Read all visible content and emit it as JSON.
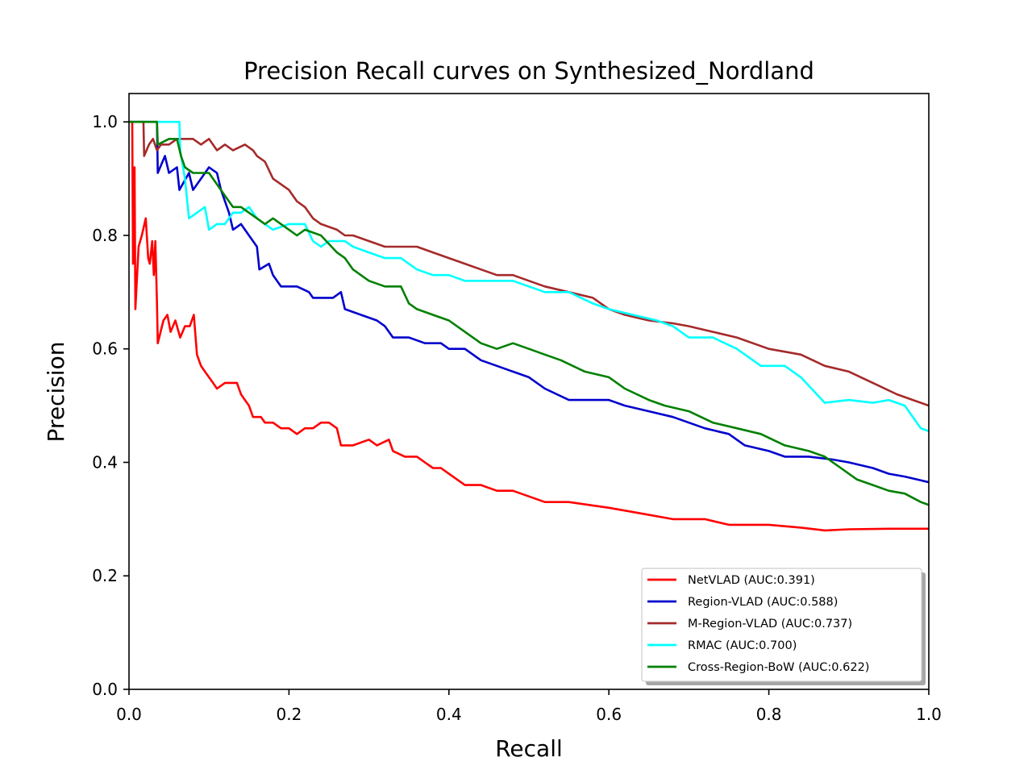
{
  "chart_data": {
    "type": "line",
    "title": "Precision Recall curves on Synthesized_Nordland",
    "xlabel": "Recall",
    "ylabel": "Precision",
    "xlim": [
      0,
      1
    ],
    "ylim": [
      0,
      1.05
    ],
    "xticks": [
      0.0,
      0.2,
      0.4,
      0.6,
      0.8,
      1.0
    ],
    "yticks": [
      0.0,
      0.2,
      0.4,
      0.6,
      0.8,
      1.0
    ],
    "xtick_labels": [
      "0.0",
      "0.2",
      "0.4",
      "0.6",
      "0.8",
      "1.0"
    ],
    "ytick_labels": [
      "0.0",
      "0.2",
      "0.4",
      "0.6",
      "0.8",
      "1.0"
    ],
    "grid": false,
    "legend_position": "lower-right",
    "series": [
      {
        "name": "NetVLAD (AUC:0.391)",
        "color": "#ff0000",
        "points": [
          [
            0.0,
            1.0
          ],
          [
            0.004,
            1.0
          ],
          [
            0.005,
            0.75
          ],
          [
            0.007,
            0.92
          ],
          [
            0.008,
            0.67
          ],
          [
            0.012,
            0.78
          ],
          [
            0.016,
            0.8
          ],
          [
            0.021,
            0.83
          ],
          [
            0.024,
            0.76
          ],
          [
            0.026,
            0.75
          ],
          [
            0.029,
            0.79
          ],
          [
            0.031,
            0.73
          ],
          [
            0.033,
            0.79
          ],
          [
            0.035,
            0.68
          ],
          [
            0.036,
            0.61
          ],
          [
            0.043,
            0.65
          ],
          [
            0.048,
            0.66
          ],
          [
            0.052,
            0.63
          ],
          [
            0.058,
            0.65
          ],
          [
            0.064,
            0.62
          ],
          [
            0.07,
            0.64
          ],
          [
            0.076,
            0.64
          ],
          [
            0.081,
            0.66
          ],
          [
            0.085,
            0.59
          ],
          [
            0.09,
            0.57
          ],
          [
            0.095,
            0.56
          ],
          [
            0.1,
            0.55
          ],
          [
            0.105,
            0.54
          ],
          [
            0.11,
            0.53
          ],
          [
            0.12,
            0.54
          ],
          [
            0.13,
            0.54
          ],
          [
            0.135,
            0.54
          ],
          [
            0.14,
            0.52
          ],
          [
            0.145,
            0.51
          ],
          [
            0.15,
            0.5
          ],
          [
            0.155,
            0.48
          ],
          [
            0.165,
            0.48
          ],
          [
            0.17,
            0.47
          ],
          [
            0.18,
            0.47
          ],
          [
            0.19,
            0.46
          ],
          [
            0.2,
            0.46
          ],
          [
            0.21,
            0.45
          ],
          [
            0.22,
            0.46
          ],
          [
            0.23,
            0.46
          ],
          [
            0.24,
            0.47
          ],
          [
            0.25,
            0.47
          ],
          [
            0.26,
            0.46
          ],
          [
            0.265,
            0.43
          ],
          [
            0.28,
            0.43
          ],
          [
            0.3,
            0.44
          ],
          [
            0.31,
            0.43
          ],
          [
            0.325,
            0.44
          ],
          [
            0.33,
            0.42
          ],
          [
            0.345,
            0.41
          ],
          [
            0.36,
            0.41
          ],
          [
            0.37,
            0.4
          ],
          [
            0.38,
            0.39
          ],
          [
            0.39,
            0.39
          ],
          [
            0.4,
            0.38
          ],
          [
            0.41,
            0.37
          ],
          [
            0.42,
            0.36
          ],
          [
            0.44,
            0.36
          ],
          [
            0.46,
            0.35
          ],
          [
            0.48,
            0.35
          ],
          [
            0.5,
            0.34
          ],
          [
            0.52,
            0.33
          ],
          [
            0.55,
            0.33
          ],
          [
            0.6,
            0.32
          ],
          [
            0.64,
            0.31
          ],
          [
            0.68,
            0.3
          ],
          [
            0.72,
            0.3
          ],
          [
            0.75,
            0.29
          ],
          [
            0.8,
            0.29
          ],
          [
            0.84,
            0.285
          ],
          [
            0.87,
            0.28
          ],
          [
            0.9,
            0.282
          ],
          [
            0.95,
            0.283
          ],
          [
            1.0,
            0.283
          ]
        ]
      },
      {
        "name": "Region-VLAD (AUC:0.588)",
        "color": "#0000cc",
        "points": [
          [
            0.0,
            1.0
          ],
          [
            0.035,
            1.0
          ],
          [
            0.036,
            0.91
          ],
          [
            0.045,
            0.94
          ],
          [
            0.05,
            0.91
          ],
          [
            0.06,
            0.92
          ],
          [
            0.063,
            0.88
          ],
          [
            0.075,
            0.91
          ],
          [
            0.08,
            0.88
          ],
          [
            0.09,
            0.9
          ],
          [
            0.1,
            0.92
          ],
          [
            0.11,
            0.91
          ],
          [
            0.115,
            0.88
          ],
          [
            0.125,
            0.84
          ],
          [
            0.13,
            0.81
          ],
          [
            0.14,
            0.82
          ],
          [
            0.15,
            0.8
          ],
          [
            0.155,
            0.79
          ],
          [
            0.16,
            0.78
          ],
          [
            0.163,
            0.74
          ],
          [
            0.175,
            0.75
          ],
          [
            0.18,
            0.73
          ],
          [
            0.19,
            0.71
          ],
          [
            0.21,
            0.71
          ],
          [
            0.225,
            0.7
          ],
          [
            0.23,
            0.69
          ],
          [
            0.24,
            0.69
          ],
          [
            0.255,
            0.69
          ],
          [
            0.265,
            0.7
          ],
          [
            0.27,
            0.67
          ],
          [
            0.29,
            0.66
          ],
          [
            0.31,
            0.65
          ],
          [
            0.32,
            0.64
          ],
          [
            0.33,
            0.62
          ],
          [
            0.35,
            0.62
          ],
          [
            0.37,
            0.61
          ],
          [
            0.39,
            0.61
          ],
          [
            0.4,
            0.6
          ],
          [
            0.42,
            0.6
          ],
          [
            0.44,
            0.58
          ],
          [
            0.46,
            0.57
          ],
          [
            0.48,
            0.56
          ],
          [
            0.5,
            0.55
          ],
          [
            0.52,
            0.53
          ],
          [
            0.55,
            0.51
          ],
          [
            0.58,
            0.51
          ],
          [
            0.6,
            0.51
          ],
          [
            0.62,
            0.5
          ],
          [
            0.65,
            0.49
          ],
          [
            0.68,
            0.48
          ],
          [
            0.72,
            0.46
          ],
          [
            0.75,
            0.45
          ],
          [
            0.77,
            0.43
          ],
          [
            0.8,
            0.42
          ],
          [
            0.82,
            0.41
          ],
          [
            0.85,
            0.41
          ],
          [
            0.88,
            0.405
          ],
          [
            0.9,
            0.4
          ],
          [
            0.93,
            0.39
          ],
          [
            0.95,
            0.38
          ],
          [
            0.97,
            0.375
          ],
          [
            1.0,
            0.365
          ]
        ]
      },
      {
        "name": "M-Region-VLAD (AUC:0.737)",
        "color": "#a52a2a",
        "points": [
          [
            0.0,
            1.0
          ],
          [
            0.018,
            1.0
          ],
          [
            0.019,
            0.94
          ],
          [
            0.025,
            0.96
          ],
          [
            0.03,
            0.97
          ],
          [
            0.035,
            0.95
          ],
          [
            0.04,
            0.96
          ],
          [
            0.05,
            0.96
          ],
          [
            0.06,
            0.97
          ],
          [
            0.07,
            0.97
          ],
          [
            0.08,
            0.97
          ],
          [
            0.09,
            0.96
          ],
          [
            0.1,
            0.97
          ],
          [
            0.11,
            0.95
          ],
          [
            0.12,
            0.96
          ],
          [
            0.13,
            0.95
          ],
          [
            0.145,
            0.96
          ],
          [
            0.155,
            0.95
          ],
          [
            0.16,
            0.94
          ],
          [
            0.17,
            0.93
          ],
          [
            0.18,
            0.9
          ],
          [
            0.19,
            0.89
          ],
          [
            0.2,
            0.88
          ],
          [
            0.21,
            0.86
          ],
          [
            0.22,
            0.85
          ],
          [
            0.23,
            0.83
          ],
          [
            0.24,
            0.82
          ],
          [
            0.26,
            0.81
          ],
          [
            0.27,
            0.8
          ],
          [
            0.28,
            0.8
          ],
          [
            0.3,
            0.79
          ],
          [
            0.32,
            0.78
          ],
          [
            0.34,
            0.78
          ],
          [
            0.36,
            0.78
          ],
          [
            0.38,
            0.77
          ],
          [
            0.4,
            0.76
          ],
          [
            0.42,
            0.75
          ],
          [
            0.44,
            0.74
          ],
          [
            0.46,
            0.73
          ],
          [
            0.48,
            0.73
          ],
          [
            0.5,
            0.72
          ],
          [
            0.52,
            0.71
          ],
          [
            0.55,
            0.7
          ],
          [
            0.58,
            0.69
          ],
          [
            0.6,
            0.67
          ],
          [
            0.62,
            0.66
          ],
          [
            0.65,
            0.65
          ],
          [
            0.68,
            0.645
          ],
          [
            0.7,
            0.64
          ],
          [
            0.73,
            0.63
          ],
          [
            0.76,
            0.62
          ],
          [
            0.8,
            0.6
          ],
          [
            0.84,
            0.59
          ],
          [
            0.87,
            0.57
          ],
          [
            0.9,
            0.56
          ],
          [
            0.93,
            0.54
          ],
          [
            0.96,
            0.52
          ],
          [
            0.98,
            0.51
          ],
          [
            1.0,
            0.5
          ]
        ]
      },
      {
        "name": "RMAC (AUC:0.700)",
        "color": "#00ffff",
        "points": [
          [
            0.0,
            1.0
          ],
          [
            0.063,
            1.0
          ],
          [
            0.064,
            0.95
          ],
          [
            0.07,
            0.9
          ],
          [
            0.075,
            0.83
          ],
          [
            0.085,
            0.84
          ],
          [
            0.095,
            0.85
          ],
          [
            0.1,
            0.81
          ],
          [
            0.11,
            0.82
          ],
          [
            0.12,
            0.82
          ],
          [
            0.13,
            0.84
          ],
          [
            0.14,
            0.84
          ],
          [
            0.15,
            0.85
          ],
          [
            0.16,
            0.83
          ],
          [
            0.17,
            0.82
          ],
          [
            0.18,
            0.81
          ],
          [
            0.2,
            0.82
          ],
          [
            0.22,
            0.82
          ],
          [
            0.23,
            0.79
          ],
          [
            0.24,
            0.78
          ],
          [
            0.25,
            0.79
          ],
          [
            0.27,
            0.79
          ],
          [
            0.28,
            0.78
          ],
          [
            0.3,
            0.77
          ],
          [
            0.32,
            0.76
          ],
          [
            0.34,
            0.76
          ],
          [
            0.36,
            0.74
          ],
          [
            0.38,
            0.73
          ],
          [
            0.4,
            0.73
          ],
          [
            0.42,
            0.72
          ],
          [
            0.45,
            0.72
          ],
          [
            0.48,
            0.72
          ],
          [
            0.5,
            0.71
          ],
          [
            0.52,
            0.7
          ],
          [
            0.55,
            0.7
          ],
          [
            0.58,
            0.68
          ],
          [
            0.6,
            0.67
          ],
          [
            0.63,
            0.66
          ],
          [
            0.66,
            0.65
          ],
          [
            0.68,
            0.64
          ],
          [
            0.7,
            0.62
          ],
          [
            0.73,
            0.62
          ],
          [
            0.76,
            0.6
          ],
          [
            0.79,
            0.57
          ],
          [
            0.82,
            0.57
          ],
          [
            0.84,
            0.55
          ],
          [
            0.86,
            0.52
          ],
          [
            0.87,
            0.505
          ],
          [
            0.9,
            0.51
          ],
          [
            0.93,
            0.505
          ],
          [
            0.95,
            0.51
          ],
          [
            0.97,
            0.5
          ],
          [
            0.99,
            0.46
          ],
          [
            1.0,
            0.455
          ]
        ]
      },
      {
        "name": "Cross-Region-BoW (AUC:0.622)",
        "color": "#008000",
        "points": [
          [
            0.0,
            1.0
          ],
          [
            0.035,
            1.0
          ],
          [
            0.036,
            0.96
          ],
          [
            0.05,
            0.97
          ],
          [
            0.06,
            0.97
          ],
          [
            0.065,
            0.94
          ],
          [
            0.07,
            0.92
          ],
          [
            0.08,
            0.91
          ],
          [
            0.09,
            0.91
          ],
          [
            0.1,
            0.91
          ],
          [
            0.11,
            0.89
          ],
          [
            0.12,
            0.87
          ],
          [
            0.13,
            0.85
          ],
          [
            0.14,
            0.85
          ],
          [
            0.15,
            0.84
          ],
          [
            0.16,
            0.83
          ],
          [
            0.17,
            0.82
          ],
          [
            0.18,
            0.83
          ],
          [
            0.19,
            0.82
          ],
          [
            0.2,
            0.81
          ],
          [
            0.21,
            0.8
          ],
          [
            0.22,
            0.81
          ],
          [
            0.24,
            0.8
          ],
          [
            0.26,
            0.77
          ],
          [
            0.27,
            0.76
          ],
          [
            0.28,
            0.74
          ],
          [
            0.3,
            0.72
          ],
          [
            0.32,
            0.71
          ],
          [
            0.34,
            0.71
          ],
          [
            0.35,
            0.68
          ],
          [
            0.36,
            0.67
          ],
          [
            0.38,
            0.66
          ],
          [
            0.4,
            0.65
          ],
          [
            0.42,
            0.63
          ],
          [
            0.44,
            0.61
          ],
          [
            0.46,
            0.6
          ],
          [
            0.48,
            0.61
          ],
          [
            0.5,
            0.6
          ],
          [
            0.52,
            0.59
          ],
          [
            0.54,
            0.58
          ],
          [
            0.57,
            0.56
          ],
          [
            0.6,
            0.55
          ],
          [
            0.62,
            0.53
          ],
          [
            0.65,
            0.51
          ],
          [
            0.67,
            0.5
          ],
          [
            0.7,
            0.49
          ],
          [
            0.73,
            0.47
          ],
          [
            0.76,
            0.46
          ],
          [
            0.79,
            0.45
          ],
          [
            0.82,
            0.43
          ],
          [
            0.85,
            0.42
          ],
          [
            0.87,
            0.41
          ],
          [
            0.89,
            0.39
          ],
          [
            0.91,
            0.37
          ],
          [
            0.93,
            0.36
          ],
          [
            0.95,
            0.35
          ],
          [
            0.97,
            0.345
          ],
          [
            0.99,
            0.33
          ],
          [
            1.0,
            0.325
          ]
        ]
      }
    ]
  }
}
